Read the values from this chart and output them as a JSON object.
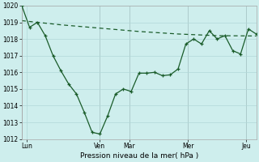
{
  "title": "",
  "xlabel": "Pression niveau de la mer( hPa )",
  "ylabel": "",
  "ylim": [
    1012,
    1020
  ],
  "xlim": [
    0,
    24
  ],
  "background_color": "#ceeeed",
  "grid_color": "#b0d8d8",
  "line_color": "#1a5c2a",
  "xtick_labels": [
    "Lun",
    "Ven",
    "Mar",
    "Mer",
    "Jeu"
  ],
  "xtick_positions": [
    0.5,
    8,
    11,
    17,
    23
  ],
  "ytick_values": [
    1012,
    1013,
    1014,
    1015,
    1016,
    1017,
    1018,
    1019,
    1020
  ],
  "line1_x": [
    0,
    0.8,
    1.6,
    2.4,
    3.2,
    4.0,
    4.8,
    5.6,
    6.4,
    7.2,
    8.0,
    8.8,
    9.6,
    10.4,
    11.2,
    12.0,
    12.8,
    13.6,
    14.4,
    15.2,
    16.0,
    16.8,
    17.6,
    18.4,
    19.2,
    20.0,
    20.8,
    21.6,
    22.4,
    23.2,
    24.0
  ],
  "line1_y": [
    1020.0,
    1018.7,
    1019.0,
    1018.2,
    1017.0,
    1016.1,
    1015.3,
    1014.7,
    1013.6,
    1012.4,
    1012.3,
    1013.4,
    1014.7,
    1015.0,
    1014.85,
    1015.95,
    1015.95,
    1016.0,
    1015.8,
    1015.85,
    1016.2,
    1017.7,
    1018.0,
    1017.7,
    1018.5,
    1018.0,
    1018.2,
    1017.3,
    1017.1,
    1018.6,
    1018.3
  ],
  "line2_x": [
    0,
    4,
    8,
    12,
    16,
    20,
    24
  ],
  "line2_y": [
    1019.1,
    1018.85,
    1018.65,
    1018.45,
    1018.3,
    1018.2,
    1018.18
  ]
}
